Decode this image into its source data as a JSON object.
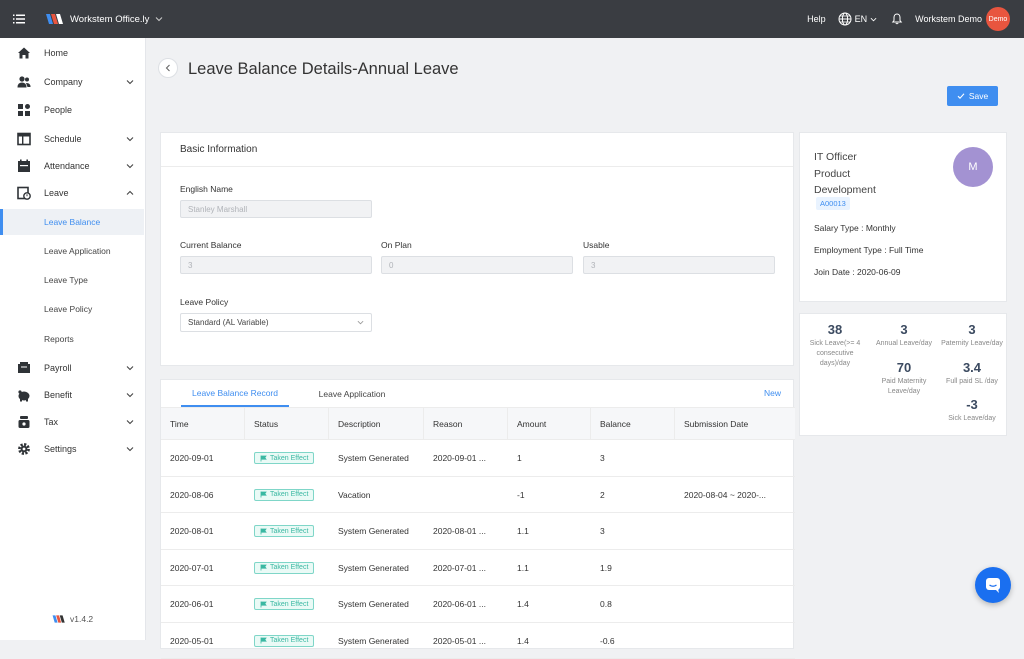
{
  "topbar": {
    "brand": "Workstem Office.ly",
    "help": "Help",
    "lang": "EN",
    "user_name": "Workstem Demo",
    "avatar_text": "Demo"
  },
  "sidebar": {
    "items": [
      {
        "label": "Home",
        "icon": "home-icon"
      },
      {
        "label": "Company",
        "icon": "company-icon"
      },
      {
        "label": "People",
        "icon": "people-icon"
      },
      {
        "label": "Schedule",
        "icon": "schedule-icon"
      },
      {
        "label": "Attendance",
        "icon": "attendance-icon"
      },
      {
        "label": "Leave",
        "icon": "leave-icon"
      }
    ],
    "leave_sub": [
      "Leave Balance",
      "Leave Application",
      "Leave Type",
      "Leave Policy",
      "Reports"
    ],
    "bottom_items": [
      {
        "label": "Payroll",
        "icon": "payroll-icon"
      },
      {
        "label": "Benefit",
        "icon": "benefit-icon"
      },
      {
        "label": "Tax",
        "icon": "tax-icon"
      },
      {
        "label": "Settings",
        "icon": "settings-icon"
      }
    ],
    "version": "v1.4.2"
  },
  "page": {
    "title": "Leave Balance Details-Annual Leave",
    "save_label": "Save"
  },
  "basic": {
    "heading": "Basic Information",
    "english_name_label": "English Name",
    "english_name_value": "Stanley Marshall",
    "current_balance_label": "Current Balance",
    "current_balance_value": "3",
    "on_plan_label": "On Plan",
    "on_plan_value": "0",
    "usable_label": "Usable",
    "usable_value": "3",
    "leave_policy_label": "Leave Policy",
    "leave_policy_value": "Standard (AL Variable)"
  },
  "profile": {
    "name_line1": "IT Officer",
    "name_line2": "Product",
    "name_line3": "Development",
    "emp_id": "A00013",
    "avatar": "M",
    "salary_type": "Salary Type : Monthly",
    "employment_type": "Employment Type : Full Time",
    "join_date": "Join Date : 2020-06-09"
  },
  "stats": [
    {
      "num": "38",
      "cap1": "Sick Leave(>= 4",
      "cap2": "consecutive",
      "cap3": "days)/day"
    },
    {
      "num": "3",
      "cap1": "Annual Leave/day",
      "cap2": "",
      "cap3": ""
    },
    {
      "num": "3",
      "cap1": "Paternity Leave/day",
      "cap2": "",
      "cap3": ""
    },
    {
      "num": "70",
      "cap1": "Paid Maternity",
      "cap2": "Leave/day",
      "cap3": ""
    },
    {
      "num": "3.4",
      "cap1": "Full paid SL /day",
      "cap2": "",
      "cap3": ""
    },
    {
      "num": "-3",
      "cap1": "Sick Leave/day",
      "cap2": "",
      "cap3": ""
    }
  ],
  "records": {
    "tabs": [
      "Leave Balance Record",
      "Leave Application"
    ],
    "new_label": "New",
    "columns": [
      "Time",
      "Status",
      "Description",
      "Reason",
      "Amount",
      "Balance",
      "Submission Date"
    ],
    "rows": [
      {
        "time": "2020-09-01",
        "status": "Taken Effect",
        "desc": "System Generated",
        "reason": "2020-09-01 ...",
        "amount": "1",
        "balance": "3",
        "submission": ""
      },
      {
        "time": "2020-08-06",
        "status": "Taken Effect",
        "desc": "Vacation",
        "reason": "",
        "amount": "-1",
        "balance": "2",
        "submission": "2020-08-04 ~ 2020-..."
      },
      {
        "time": "2020-08-01",
        "status": "Taken Effect",
        "desc": "System Generated",
        "reason": "2020-08-01 ...",
        "amount": "1.1",
        "balance": "3",
        "submission": ""
      },
      {
        "time": "2020-07-01",
        "status": "Taken Effect",
        "desc": "System Generated",
        "reason": "2020-07-01 ...",
        "amount": "1.1",
        "balance": "1.9",
        "submission": ""
      },
      {
        "time": "2020-06-01",
        "status": "Taken Effect",
        "desc": "System Generated",
        "reason": "2020-06-01 ...",
        "amount": "1.4",
        "balance": "0.8",
        "submission": ""
      },
      {
        "time": "2020-05-01",
        "status": "Taken Effect",
        "desc": "System Generated",
        "reason": "2020-05-01 ...",
        "amount": "1.4",
        "balance": "-0.6",
        "submission": ""
      }
    ]
  },
  "colors": {
    "accent": "#3f8ef0",
    "topbar": "#3a3d42",
    "badge": "#3ab8a2",
    "avatar_demo": "#e8553f",
    "avatar_profile": "#a392d2"
  }
}
